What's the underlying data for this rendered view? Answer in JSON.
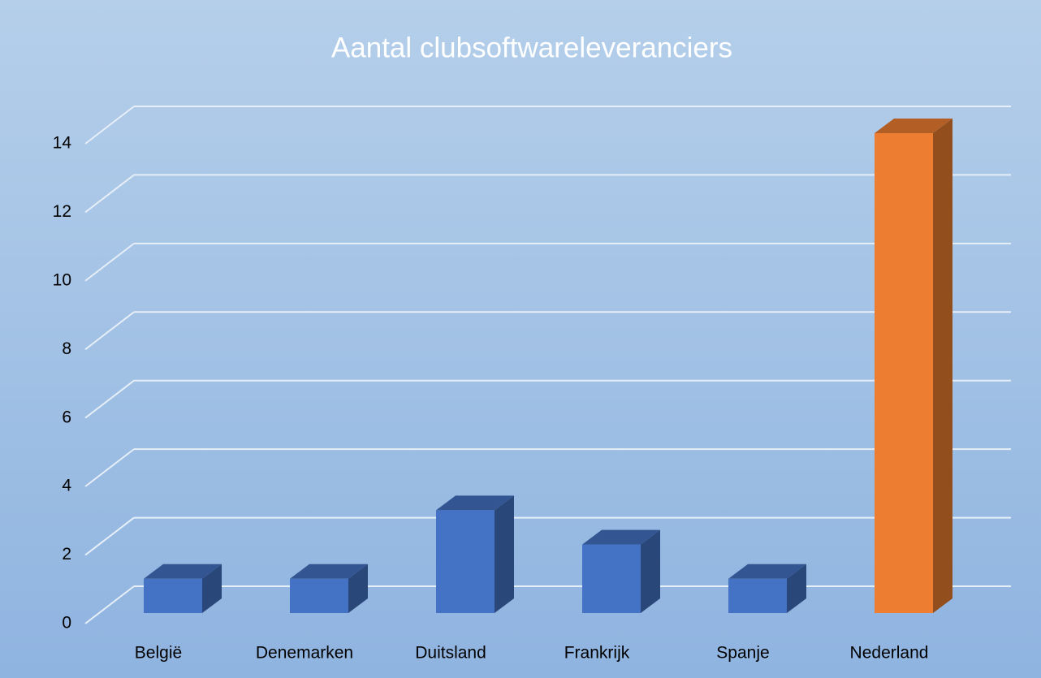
{
  "chart_data": {
    "type": "bar3d",
    "title": "Aantal clubsoftwareleveranciers",
    "categories": [
      "België",
      "Denemarken",
      "Duitsland",
      "Frankrijk",
      "Spanje",
      "Nederland"
    ],
    "values": [
      1,
      1,
      3,
      2,
      1,
      14
    ],
    "colors": [
      "#4472c4",
      "#4472c4",
      "#4472c4",
      "#4472c4",
      "#4472c4",
      "#ed7d31"
    ],
    "ylim": [
      0,
      14
    ],
    "yticks": [
      0,
      2,
      4,
      6,
      8,
      10,
      12,
      14
    ],
    "grid": true
  }
}
